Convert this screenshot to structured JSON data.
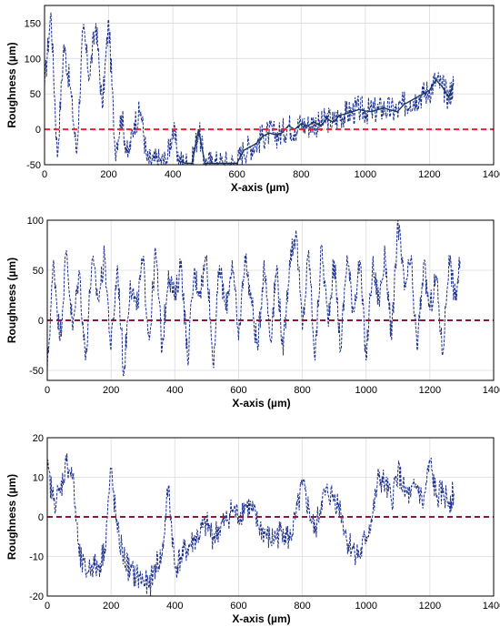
{
  "chart_data": [
    {
      "type": "line",
      "xlabel": "X-axis (µm)",
      "ylabel": "Roughness (µm)",
      "xlim": [
        0,
        1400
      ],
      "ylim": [
        -50,
        175
      ],
      "xticks": [
        "0",
        "200",
        "400",
        "600",
        "800",
        "1000",
        "1200",
        "1400"
      ],
      "yticks": [
        "-50",
        "0",
        "50",
        "100",
        "150"
      ],
      "grid": true,
      "reference_line": {
        "y": 0,
        "color": "#e8203a",
        "style": "dashed"
      },
      "series_color": "#1b2f8f",
      "profile_color": "#1a3a5c",
      "x": [
        0,
        20,
        40,
        60,
        80,
        100,
        120,
        140,
        160,
        180,
        200,
        220,
        240,
        260,
        280,
        300,
        320,
        340,
        360,
        380,
        400,
        420,
        440,
        460,
        480,
        500,
        520,
        540,
        560,
        580,
        600,
        620,
        640,
        660,
        680,
        700,
        720,
        740,
        760,
        780,
        800,
        820,
        840,
        860,
        880,
        900,
        920,
        940,
        960,
        980,
        1000,
        1020,
        1040,
        1060,
        1080,
        1100,
        1120,
        1140,
        1160,
        1180,
        1200,
        1220,
        1240,
        1260,
        1275
      ],
      "y": [
        60,
        165,
        -40,
        120,
        60,
        -35,
        140,
        75,
        150,
        30,
        155,
        -30,
        20,
        -40,
        10,
        25,
        -45,
        -45,
        -45,
        -45,
        0,
        -45,
        -48,
        -48,
        0,
        -48,
        -48,
        -48,
        -48,
        -48,
        -48,
        -30,
        -25,
        -20,
        -10,
        -5,
        -8,
        -5,
        5,
        0,
        8,
        5,
        10,
        5,
        15,
        10,
        20,
        22,
        25,
        28,
        26,
        25,
        28,
        30,
        27,
        25,
        35,
        40,
        45,
        50,
        55,
        70,
        60,
        45,
        65
      ]
    },
    {
      "type": "line",
      "xlabel": "X-axis (µm)",
      "ylabel": "Roughness (µm)",
      "xlim": [
        0,
        1400
      ],
      "ylim": [
        -60,
        100
      ],
      "xticks": [
        "0",
        "200",
        "400",
        "600",
        "800",
        "1000",
        "1200",
        "1400"
      ],
      "yticks": [
        "-50",
        "0",
        "50",
        "100"
      ],
      "grid": true,
      "reference_line": {
        "y": 0,
        "color": "#8b1a3a",
        "style": "dashed"
      },
      "series_color": "#1b2f8f",
      "x": [
        0,
        20,
        40,
        60,
        80,
        100,
        120,
        140,
        160,
        180,
        200,
        220,
        240,
        260,
        280,
        300,
        320,
        340,
        360,
        380,
        400,
        420,
        440,
        460,
        480,
        500,
        520,
        540,
        560,
        580,
        600,
        620,
        640,
        660,
        680,
        700,
        720,
        740,
        760,
        780,
        800,
        820,
        840,
        860,
        880,
        900,
        920,
        940,
        960,
        980,
        1000,
        1020,
        1040,
        1060,
        1080,
        1100,
        1120,
        1140,
        1160,
        1180,
        1200,
        1220,
        1240,
        1260,
        1280,
        1295
      ],
      "y": [
        -50,
        60,
        -20,
        70,
        -10,
        50,
        -40,
        60,
        20,
        65,
        -30,
        55,
        -55,
        40,
        10,
        60,
        -20,
        70,
        -30,
        50,
        20,
        60,
        -40,
        45,
        30,
        65,
        -45,
        55,
        10,
        60,
        -20,
        65,
        20,
        -30,
        60,
        -20,
        55,
        -35,
        60,
        90,
        -10,
        70,
        -40,
        75,
        0,
        60,
        -30,
        65,
        10,
        60,
        -40,
        55,
        20,
        65,
        -20,
        100,
        30,
        60,
        -30,
        55,
        10,
        45,
        -35,
        65,
        20,
        60
      ]
    },
    {
      "type": "line",
      "xlabel": "X-axis (µm)",
      "ylabel": "Roughness (µm)",
      "xlim": [
        0,
        1400
      ],
      "ylim": [
        -20,
        20
      ],
      "xticks": [
        "0",
        "200",
        "400",
        "600",
        "800",
        "1000",
        "1200",
        "1400"
      ],
      "yticks": [
        "-20",
        "-10",
        "0",
        "10",
        "20"
      ],
      "grid": true,
      "reference_line": {
        "y": 0,
        "color": "#8b1a3a",
        "style": "dashed"
      },
      "series_color": "#1b2f8f",
      "x": [
        0,
        20,
        40,
        60,
        80,
        100,
        120,
        140,
        160,
        180,
        200,
        220,
        240,
        260,
        280,
        300,
        320,
        340,
        360,
        380,
        400,
        420,
        440,
        460,
        480,
        500,
        520,
        540,
        560,
        580,
        600,
        620,
        640,
        660,
        680,
        700,
        720,
        740,
        760,
        780,
        800,
        820,
        840,
        860,
        880,
        900,
        920,
        940,
        960,
        980,
        1000,
        1020,
        1040,
        1060,
        1080,
        1100,
        1120,
        1140,
        1160,
        1180,
        1200,
        1220,
        1240,
        1260,
        1275
      ],
      "y": [
        12,
        4,
        6,
        14,
        10,
        -10,
        -14,
        -12,
        -13,
        -8,
        12,
        -4,
        -10,
        -14,
        -15,
        -16,
        -18,
        -12,
        -10,
        8,
        -13,
        -10,
        -8,
        -6,
        -4,
        -2,
        -5,
        -3,
        -1,
        2,
        0,
        3,
        2,
        -2,
        -4,
        -6,
        -5,
        -3,
        -6,
        0,
        8,
        2,
        -4,
        4,
        6,
        5,
        2,
        -6,
        -8,
        -10,
        -5,
        0,
        10,
        8,
        4,
        12,
        6,
        5,
        8,
        3,
        14,
        5,
        6,
        4,
        6
      ]
    }
  ]
}
